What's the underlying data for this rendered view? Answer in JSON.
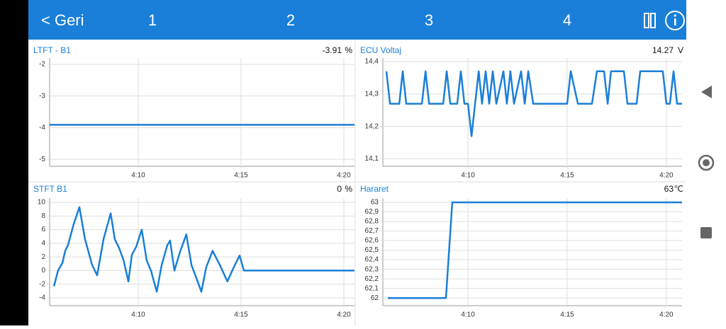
{
  "header": {
    "back": "< Geri",
    "tabs": [
      "1",
      "2",
      "3",
      "4"
    ]
  },
  "chart_data": [
    {
      "type": "line",
      "title": "LTFT - B1",
      "current": "-3.91",
      "unit": "%",
      "color": "#1a7fd8",
      "x": [
        245.69,
        260.52
      ],
      "values": [
        -3.91,
        -3.91
      ],
      "xlim": [
        245.69,
        260.52
      ],
      "xticks": [
        {
          "value": 250,
          "label": "4:10"
        },
        {
          "value": 255,
          "label": "4:15"
        },
        {
          "value": 260,
          "label": "4:20"
        }
      ],
      "ylim": [
        -5.22,
        -1.8
      ],
      "yticks": [
        -2,
        -3,
        -4,
        -5
      ],
      "grid": true
    },
    {
      "type": "line",
      "title": "ECU Voltaj",
      "current": "14.27",
      "unit": "V",
      "color": "#1a7fd8",
      "x": [
        245.89,
        246.07,
        246.54,
        246.71,
        246.89,
        247.68,
        247.86,
        248.04,
        248.75,
        248.93,
        249.11,
        249.46,
        249.64,
        249.82,
        250,
        250.18,
        250.36,
        250.54,
        250.71,
        250.89,
        251.07,
        251.25,
        251.43,
        251.79,
        251.96,
        252.14,
        252.32,
        252.68,
        252.86,
        253.04,
        253.29,
        255,
        255.18,
        255.54,
        256.25,
        256.5,
        256.86,
        257.04,
        257.21,
        257.86,
        258.04,
        258.5,
        258.68,
        259.82,
        260,
        260.18,
        260.36,
        260.54,
        260.79
      ],
      "values": [
        14.37,
        14.27,
        14.27,
        14.37,
        14.27,
        14.27,
        14.37,
        14.27,
        14.27,
        14.37,
        14.27,
        14.27,
        14.37,
        14.27,
        14.27,
        14.17,
        14.27,
        14.37,
        14.27,
        14.37,
        14.27,
        14.37,
        14.27,
        14.37,
        14.27,
        14.37,
        14.27,
        14.37,
        14.27,
        14.37,
        14.27,
        14.27,
        14.37,
        14.27,
        14.27,
        14.37,
        14.37,
        14.27,
        14.37,
        14.37,
        14.27,
        14.27,
        14.37,
        14.37,
        14.27,
        14.27,
        14.37,
        14.27,
        14.27
      ],
      "xlim": [
        245.71,
        260.79
      ],
      "xticks": [
        {
          "value": 250,
          "label": "4:10"
        },
        {
          "value": 255,
          "label": "4:15"
        },
        {
          "value": 260,
          "label": "4:20"
        }
      ],
      "ylim": [
        14.077,
        14.411
      ],
      "yticks": [
        {
          "value": 14.4,
          "label": "14,4"
        },
        {
          "value": 14.3,
          "label": "14,3"
        },
        {
          "value": 14.2,
          "label": "14,2"
        },
        {
          "value": 14.1,
          "label": "14,1"
        }
      ],
      "grid": true
    },
    {
      "type": "line",
      "title": "STFT B1",
      "current": "0",
      "unit": "%",
      "color": "#1a7fd8",
      "x": [
        245.9,
        246.1,
        246.31,
        246.45,
        246.59,
        246.86,
        247.14,
        247.41,
        247.76,
        248,
        248.31,
        248.66,
        248.86,
        249.07,
        249.28,
        249.52,
        249.69,
        249.9,
        250.17,
        250.41,
        250.62,
        250.9,
        251.14,
        251.41,
        251.55,
        251.76,
        252.03,
        252.34,
        252.59,
        252.83,
        253.07,
        253.31,
        253.62,
        253.97,
        254.34,
        254.62,
        254.93,
        255.14,
        260.52
      ],
      "values": [
        -2.3,
        0,
        1.1,
        2.9,
        3.8,
        6.8,
        9.3,
        4.6,
        0.8,
        -0.7,
        4.6,
        8.4,
        4.6,
        3.3,
        1.6,
        -1.6,
        2.3,
        3.5,
        6,
        1.5,
        0,
        -3.1,
        0.8,
        3.7,
        4.4,
        0,
        2.7,
        5.3,
        0.8,
        -1.1,
        -3.1,
        0.5,
        2.9,
        0.8,
        -1.6,
        0.3,
        2.2,
        0,
        0
      ],
      "xlim": [
        245.69,
        260.52
      ],
      "xticks": [
        {
          "value": 250,
          "label": "4:10"
        },
        {
          "value": 255,
          "label": "4:15"
        },
        {
          "value": 260,
          "label": "4:20"
        }
      ],
      "ylim": [
        -5.15,
        10.63
      ],
      "yticks": [
        10,
        8,
        6,
        4,
        2,
        0,
        -2,
        -4
      ],
      "grid": true
    },
    {
      "type": "line",
      "title": "Hararet",
      "current": "63",
      "unit": "℃",
      "color": "#1a7fd8",
      "x": [
        245.96,
        248.89,
        249.21,
        260.79
      ],
      "values": [
        62,
        62,
        63,
        63
      ],
      "xlim": [
        245.71,
        260.79
      ],
      "xticks": [
        {
          "value": 250,
          "label": "4:10"
        },
        {
          "value": 255,
          "label": "4:15"
        },
        {
          "value": 260,
          "label": "4:20"
        }
      ],
      "ylim": [
        61.92,
        63.044
      ],
      "yticks": [
        63,
        {
          "value": 62.9,
          "label": "62,9"
        },
        {
          "value": 62.8,
          "label": "62,8"
        },
        {
          "value": 62.7,
          "label": "62,7"
        },
        {
          "value": 62.6,
          "label": "62,6"
        },
        {
          "value": 62.5,
          "label": "62,5"
        },
        {
          "value": 62.4,
          "label": "62,4"
        },
        {
          "value": 62.3,
          "label": "62,3"
        },
        {
          "value": 62.2,
          "label": "62,2"
        },
        {
          "value": 62.1,
          "label": "62,1"
        },
        62
      ],
      "grid": true
    }
  ]
}
